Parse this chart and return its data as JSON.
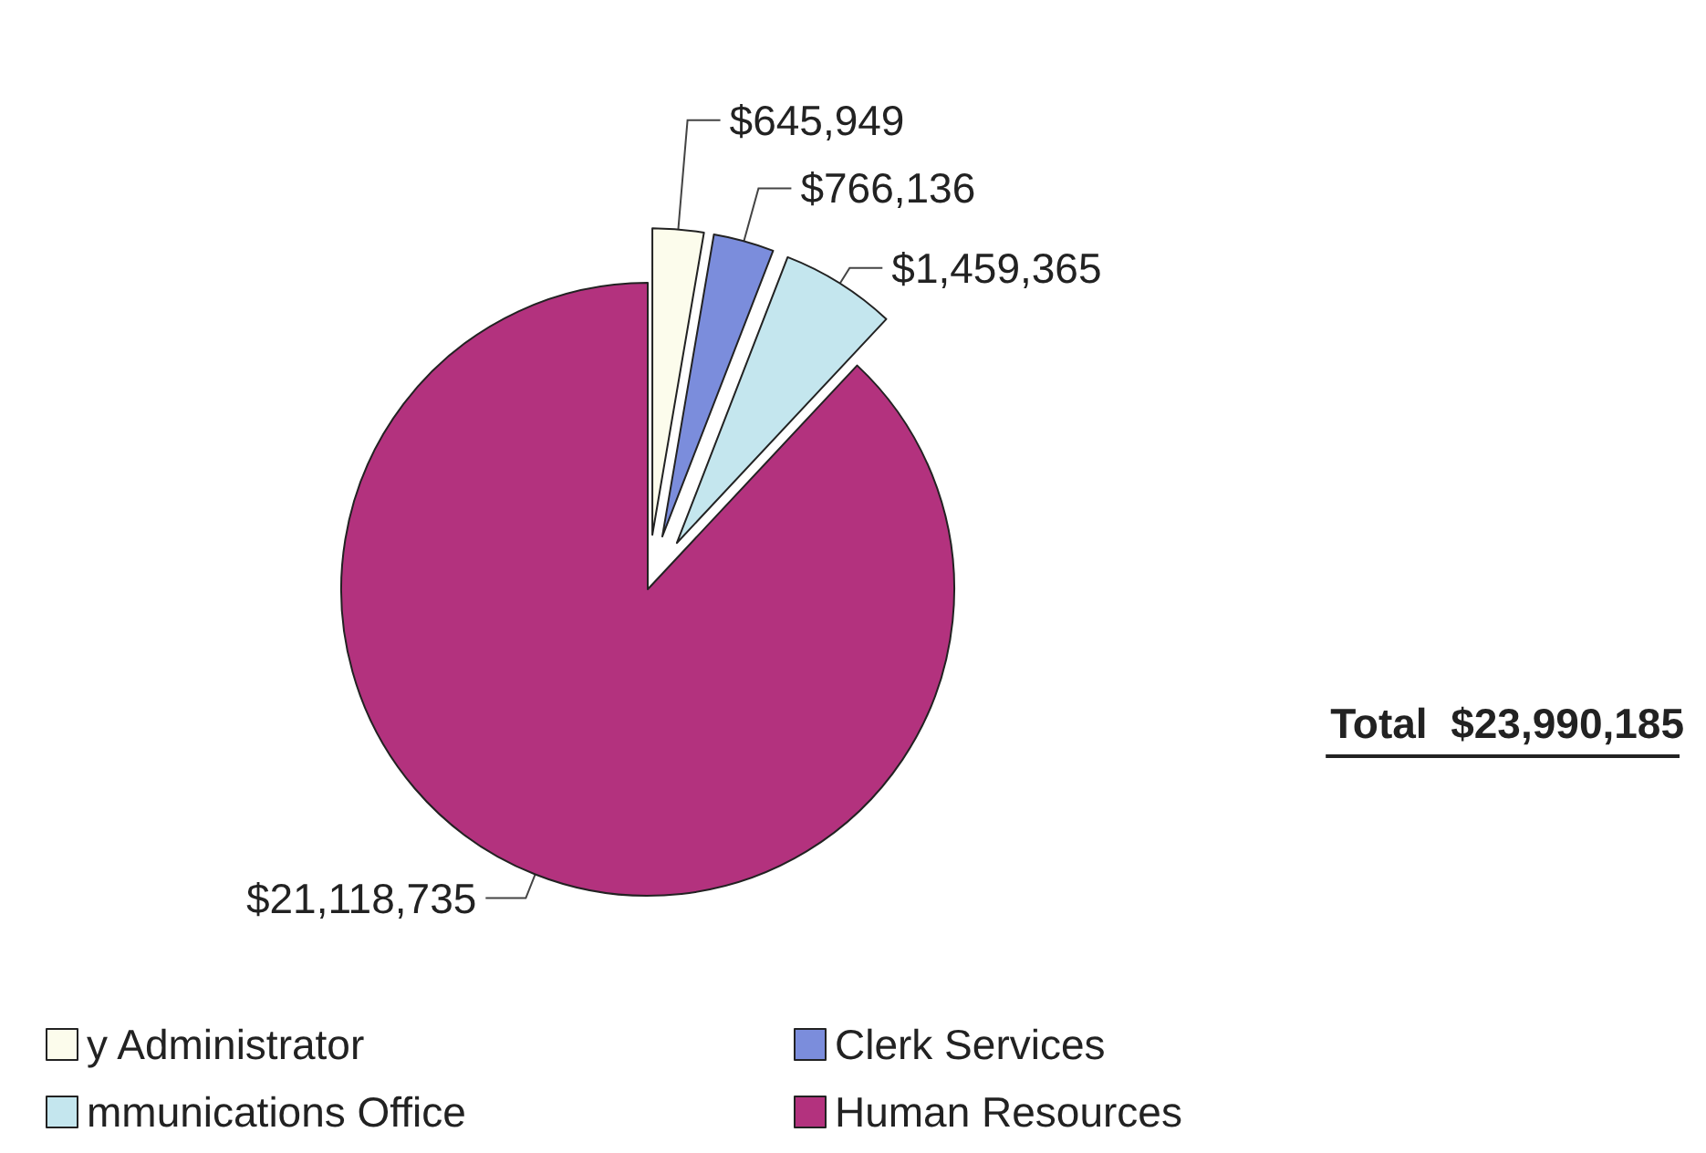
{
  "chart_data": {
    "type": "pie",
    "categories": [
      "y Administrator",
      "Clerk Services",
      "mmunications Office",
      "Human Resources"
    ],
    "values": [
      645949,
      766136,
      1459365,
      21118735
    ],
    "value_labels": [
      "$645,949",
      "$766,136",
      "$1,459,365",
      "$21,118,735"
    ],
    "colors": [
      "#fcfcec",
      "#7b8ddc",
      "#c4e6ee",
      "#b3327e"
    ],
    "annotations": [
      "Total  $23,990,185"
    ],
    "legend": "bottom"
  }
}
